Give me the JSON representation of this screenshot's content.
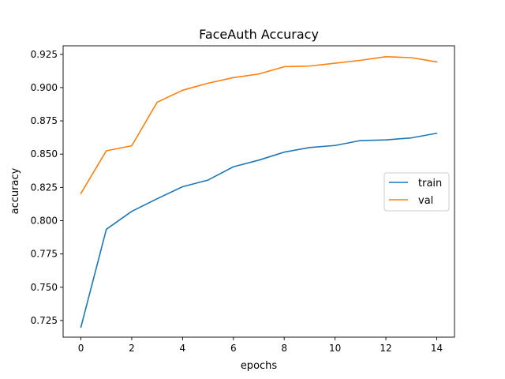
{
  "chart_data": {
    "type": "line",
    "title": "FaceAuth Accuracy",
    "xlabel": "epochs",
    "ylabel": "accuracy",
    "x": [
      0,
      1,
      2,
      3,
      4,
      5,
      6,
      7,
      8,
      9,
      10,
      11,
      12,
      13,
      14
    ],
    "xlim": [
      -0.7,
      14.7
    ],
    "ylim": [
      0.7125,
      0.9314
    ],
    "xticks": [
      0,
      2,
      4,
      6,
      8,
      10,
      12,
      14
    ],
    "xtick_labels": [
      "0",
      "2",
      "4",
      "6",
      "8",
      "10",
      "12",
      "14"
    ],
    "yticks": [
      0.725,
      0.75,
      0.775,
      0.8,
      0.825,
      0.85,
      0.875,
      0.9,
      0.925
    ],
    "ytick_labels": [
      "0.725",
      "0.750",
      "0.775",
      "0.800",
      "0.825",
      "0.850",
      "0.875",
      "0.900",
      "0.925"
    ],
    "grid": false,
    "legend_position": "center-right",
    "series": [
      {
        "name": "train",
        "color": "#1f77b4",
        "values": [
          0.72,
          0.7935,
          0.807,
          0.8165,
          0.8255,
          0.8305,
          0.8405,
          0.8455,
          0.8515,
          0.855,
          0.8565,
          0.8602,
          0.8607,
          0.8622,
          0.8657
        ]
      },
      {
        "name": "val",
        "color": "#ff7f0e",
        "values": [
          0.8205,
          0.8525,
          0.8563,
          0.889,
          0.898,
          0.9033,
          0.9075,
          0.9102,
          0.9157,
          0.9162,
          0.9183,
          0.9205,
          0.9232,
          0.9225,
          0.9193
        ]
      }
    ]
  }
}
